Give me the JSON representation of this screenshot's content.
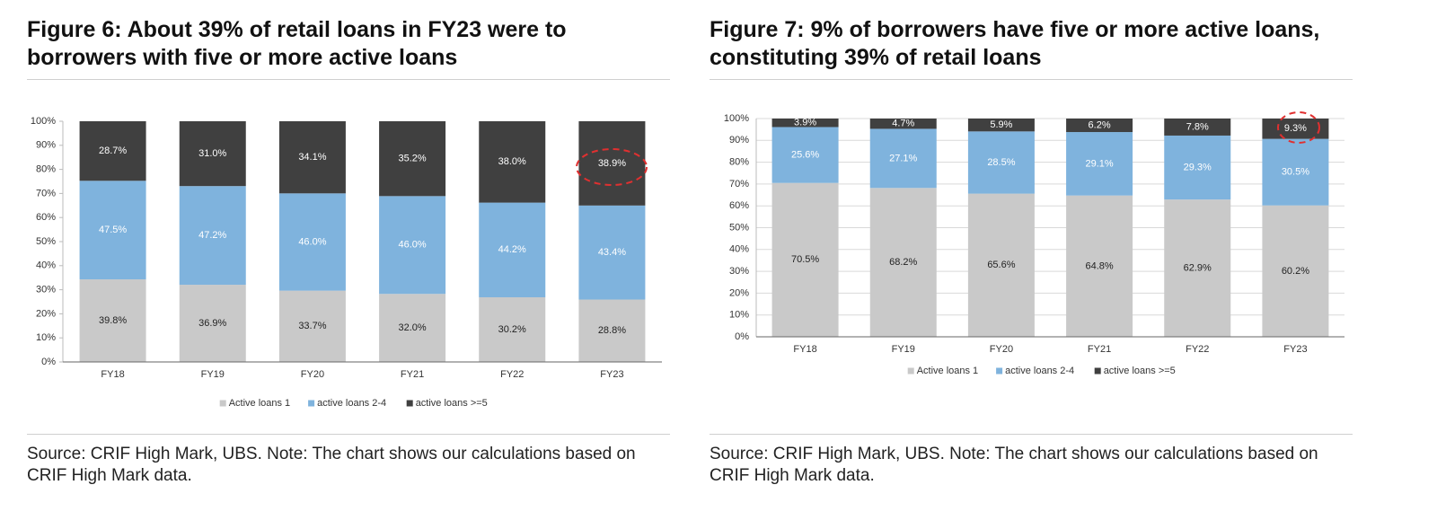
{
  "chart_data": [
    {
      "type": "bar",
      "stacking": "percent",
      "title": "Figure 6: About 39% of retail loans in FY23 were to borrowers with five or more active loans",
      "note": "Source: CRIF High Mark, UBS. Note: The chart shows our calculations based on CRIF High Mark data.",
      "categories": [
        "FY18",
        "FY19",
        "FY20",
        "FY21",
        "FY22",
        "FY23"
      ],
      "series": [
        {
          "name": "Active loans 1",
          "color": "#c9c9c9",
          "label_color": "#222222",
          "values": [
            39.8,
            36.9,
            33.7,
            32.0,
            30.2,
            28.8
          ],
          "value_labels": [
            "39.8%",
            "36.9%",
            "33.7%",
            "32.0%",
            "30.2%",
            "28.8%"
          ]
        },
        {
          "name": "active loans 2-4",
          "color": "#7fb3dd",
          "label_color": "#ffffff",
          "values": [
            47.5,
            47.2,
            46.0,
            46.0,
            44.2,
            43.4
          ],
          "value_labels": [
            "47.5%",
            "47.2%",
            "46.0%",
            "46.0%",
            "44.2%",
            "43.4%"
          ]
        },
        {
          "name": "active loans >=5",
          "color": "#404040",
          "label_color": "#ffffff",
          "values": [
            28.7,
            31.0,
            34.1,
            35.2,
            38.0,
            38.9
          ],
          "value_labels": [
            "28.7%",
            "31.0%",
            "34.1%",
            "35.2%",
            "38.0%",
            "38.9%"
          ]
        }
      ],
      "ylim": [
        0,
        100
      ],
      "yticks": [
        {
          "value": 0,
          "label": "0%"
        },
        {
          "value": 10,
          "label": "10%"
        },
        {
          "value": 20,
          "label": "20%"
        },
        {
          "value": 30,
          "label": "30%"
        },
        {
          "value": 40,
          "label": "40%"
        },
        {
          "value": 50,
          "label": "50%"
        },
        {
          "value": 60,
          "label": "60%"
        },
        {
          "value": 70,
          "label": "70%"
        },
        {
          "value": 80,
          "label": "80%"
        },
        {
          "value": 90,
          "label": "90%"
        },
        {
          "value": 100,
          "label": "100%"
        }
      ],
      "grid": false,
      "legend": "bottom"
    },
    {
      "type": "bar",
      "stacking": "percent",
      "title": "Figure 7: 9% of borrowers have five or more active loans, constituting 39% of retail loans",
      "note": "Source: CRIF High Mark, UBS. Note: The chart shows our calculations based on CRIF High Mark data.",
      "categories": [
        "FY18",
        "FY19",
        "FY20",
        "FY21",
        "FY22",
        "FY23"
      ],
      "series": [
        {
          "name": "Active loans 1",
          "color": "#c9c9c9",
          "label_color": "#222222",
          "values": [
            70.5,
            68.2,
            65.6,
            64.8,
            62.9,
            60.2
          ],
          "value_labels": [
            "70.5%",
            "68.2%",
            "65.6%",
            "64.8%",
            "62.9%",
            "60.2%"
          ]
        },
        {
          "name": "active loans 2-4",
          "color": "#7fb3dd",
          "label_color": "#ffffff",
          "values": [
            25.6,
            27.1,
            28.5,
            29.1,
            29.3,
            30.5
          ],
          "value_labels": [
            "25.6%",
            "27.1%",
            "28.5%",
            "29.1%",
            "29.3%",
            "30.5%"
          ]
        },
        {
          "name": "active loans >=5",
          "color": "#404040",
          "label_color": "#ffffff",
          "values": [
            3.9,
            4.7,
            5.9,
            6.2,
            7.8,
            9.3
          ],
          "value_labels": [
            "3.9%",
            "4.7%",
            "5.9%",
            "6.2%",
            "7.8%",
            "9.3%"
          ]
        }
      ],
      "ylim": [
        0,
        100
      ],
      "yticks": [
        {
          "value": 0,
          "label": "0%"
        },
        {
          "value": 10,
          "label": "10%"
        },
        {
          "value": 20,
          "label": "20%"
        },
        {
          "value": 30,
          "label": "30%"
        },
        {
          "value": 40,
          "label": "40%"
        },
        {
          "value": 50,
          "label": "50%"
        },
        {
          "value": 60,
          "label": "60%"
        },
        {
          "value": 70,
          "label": "70%"
        },
        {
          "value": 80,
          "label": "80%"
        },
        {
          "value": 90,
          "label": "90%"
        },
        {
          "value": 100,
          "label": "100%"
        }
      ],
      "grid": true,
      "legend": "bottom"
    }
  ]
}
